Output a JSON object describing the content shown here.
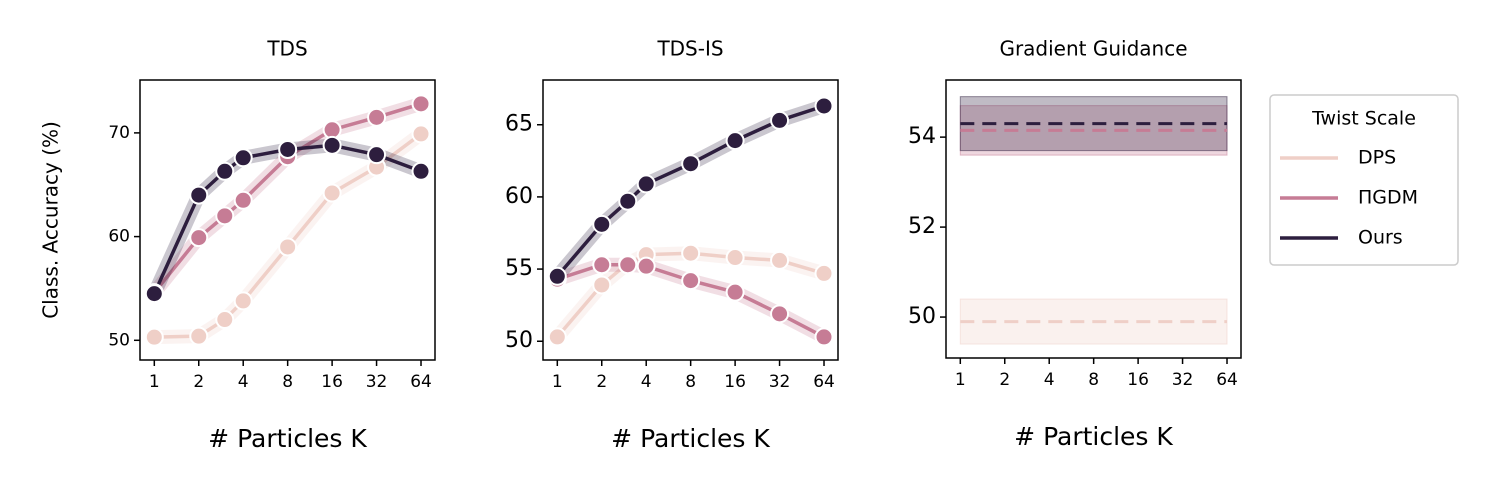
{
  "chart_data": [
    {
      "type": "line",
      "title": "TDS",
      "xlabel": "# Particles K",
      "ylabel": "Class. Accuracy (%)",
      "xscale": "log2",
      "x": [
        1,
        2,
        3,
        4,
        8,
        16,
        32,
        64
      ],
      "xlim": [
        0.8,
        79.6
      ],
      "xticks": [
        1,
        2,
        4,
        8,
        16,
        32,
        64
      ],
      "ylim": [
        48.1,
        75.1
      ],
      "yticks": [
        50,
        60,
        70
      ],
      "series": [
        {
          "name": "DPS",
          "color": "#efcfc7",
          "values": [
            50.3,
            50.4,
            52.0,
            53.8,
            59.0,
            64.2,
            66.7,
            69.9
          ]
        },
        {
          "name": "ΠGDM",
          "color": "#c67c95",
          "values": [
            54.6,
            59.9,
            62.0,
            63.5,
            67.7,
            70.3,
            71.5,
            72.8
          ]
        },
        {
          "name": "Ours",
          "color": "#2d1e3e",
          "values": [
            54.5,
            64.0,
            66.3,
            67.6,
            68.4,
            68.8,
            67.9,
            66.3
          ]
        }
      ]
    },
    {
      "type": "line",
      "title": "TDS-IS",
      "xlabel": "# Particles K",
      "xscale": "log2",
      "x": [
        1,
        2,
        3,
        4,
        8,
        16,
        32,
        64
      ],
      "xlim": [
        0.8,
        79.6
      ],
      "xticks": [
        1,
        2,
        4,
        8,
        16,
        32,
        64
      ],
      "ylim": [
        48.7,
        68.1
      ],
      "yticks": [
        50,
        55,
        60,
        65
      ],
      "series": [
        {
          "name": "DPS",
          "color": "#efcfc7",
          "values": [
            50.3,
            53.9,
            55.4,
            56.0,
            56.1,
            55.8,
            55.6,
            54.7
          ]
        },
        {
          "name": "ΠGDM",
          "color": "#c67c95",
          "values": [
            54.3,
            55.3,
            55.3,
            55.2,
            54.2,
            53.4,
            51.9,
            50.3
          ]
        },
        {
          "name": "Ours",
          "color": "#2d1e3e",
          "values": [
            54.5,
            58.1,
            59.7,
            60.9,
            62.3,
            63.9,
            65.3,
            66.3
          ]
        }
      ]
    },
    {
      "type": "hline",
      "title": "Gradient Guidance",
      "xlabel": "# Particles K",
      "xscale": "log2",
      "xlim": [
        0.8,
        79.6
      ],
      "xticks": [
        1,
        2,
        4,
        8,
        16,
        32,
        64
      ],
      "ylim": [
        49.09,
        55.27
      ],
      "yticks": [
        50,
        52,
        54
      ],
      "legend": {
        "title": "Twist Scale",
        "loc": "outside right"
      },
      "series": [
        {
          "name": "DPS",
          "color": "#efcfc7",
          "value": 49.9,
          "lower": 49.4,
          "upper": 50.4
        },
        {
          "name": "ΠGDM",
          "color": "#c67c95",
          "value": 54.15,
          "lower": 53.6,
          "upper": 54.7
        },
        {
          "name": "Ours",
          "color": "#2d1e3e",
          "value": 54.3,
          "lower": 53.7,
          "upper": 54.9
        }
      ]
    }
  ]
}
